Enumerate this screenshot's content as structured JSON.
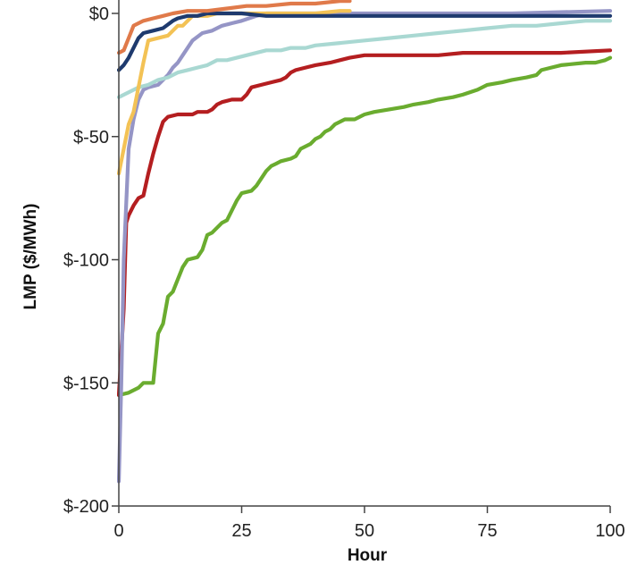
{
  "chart_data": {
    "type": "line",
    "title": "",
    "xlabel": "Hour",
    "ylabel": "LMP ($/MWh)",
    "xlim": [
      0,
      100
    ],
    "ylim": [
      -200,
      0
    ],
    "x_ticks": [
      {
        "value": 0,
        "label": "0"
      },
      {
        "value": 25,
        "label": "25"
      },
      {
        "value": 50,
        "label": "50"
      },
      {
        "value": 75,
        "label": "75"
      },
      {
        "value": 100,
        "label": "100"
      }
    ],
    "y_ticks": [
      {
        "value": 0,
        "label": "$0"
      },
      {
        "value": -50,
        "label": "$-50"
      },
      {
        "value": -100,
        "label": "$-100"
      },
      {
        "value": -150,
        "label": "$-150"
      },
      {
        "value": -200,
        "label": "$-200"
      }
    ],
    "grid": false,
    "legend": "none",
    "series": [
      {
        "color": "#6aac2f",
        "points": [
          [
            0,
            -155
          ],
          [
            2,
            -154
          ],
          [
            4,
            -152
          ],
          [
            5,
            -150
          ],
          [
            7,
            -150
          ],
          [
            8,
            -130
          ],
          [
            9,
            -126
          ],
          [
            10,
            -115
          ],
          [
            11,
            -113
          ],
          [
            12,
            -108
          ],
          [
            13,
            -103
          ],
          [
            14,
            -100
          ],
          [
            16,
            -99
          ],
          [
            17,
            -96
          ],
          [
            18,
            -90
          ],
          [
            19,
            -89
          ],
          [
            20,
            -87
          ],
          [
            21,
            -85
          ],
          [
            22,
            -84
          ],
          [
            23,
            -80
          ],
          [
            24,
            -76
          ],
          [
            25,
            -73
          ],
          [
            27,
            -72
          ],
          [
            28,
            -70
          ],
          [
            29,
            -67
          ],
          [
            30,
            -64
          ],
          [
            31,
            -62
          ],
          [
            32,
            -61
          ],
          [
            33,
            -60
          ],
          [
            35,
            -59
          ],
          [
            36,
            -58
          ],
          [
            37,
            -55
          ],
          [
            38,
            -54
          ],
          [
            39,
            -53
          ],
          [
            40,
            -51
          ],
          [
            41,
            -50
          ],
          [
            42,
            -48
          ],
          [
            43,
            -47
          ],
          [
            44,
            -45
          ],
          [
            45,
            -44
          ],
          [
            46,
            -43
          ],
          [
            48,
            -43
          ],
          [
            49,
            -42
          ],
          [
            50,
            -41
          ],
          [
            52,
            -40
          ],
          [
            55,
            -39
          ],
          [
            58,
            -38
          ],
          [
            60,
            -37
          ],
          [
            63,
            -36
          ],
          [
            65,
            -35
          ],
          [
            68,
            -34
          ],
          [
            70,
            -33
          ],
          [
            73,
            -31
          ],
          [
            75,
            -29
          ],
          [
            78,
            -28
          ],
          [
            80,
            -27
          ],
          [
            83,
            -26
          ],
          [
            85,
            -25
          ],
          [
            86,
            -23
          ],
          [
            88,
            -22
          ],
          [
            90,
            -21
          ],
          [
            95,
            -20
          ],
          [
            97,
            -20
          ],
          [
            99,
            -19
          ],
          [
            100,
            -18
          ]
        ]
      },
      {
        "color": "#b41e20",
        "points": [
          [
            0,
            -155
          ],
          [
            1,
            -120
          ],
          [
            1.5,
            -85
          ],
          [
            2,
            -82
          ],
          [
            3,
            -78
          ],
          [
            4,
            -75
          ],
          [
            5,
            -74
          ],
          [
            6,
            -65
          ],
          [
            7,
            -57
          ],
          [
            8,
            -50
          ],
          [
            9,
            -44
          ],
          [
            10,
            -42
          ],
          [
            12,
            -41
          ],
          [
            15,
            -41
          ],
          [
            16,
            -40
          ],
          [
            18,
            -40
          ],
          [
            19,
            -39
          ],
          [
            20,
            -37
          ],
          [
            21,
            -36
          ],
          [
            23,
            -35
          ],
          [
            25,
            -35
          ],
          [
            26,
            -33
          ],
          [
            27,
            -30
          ],
          [
            29,
            -29
          ],
          [
            31,
            -28
          ],
          [
            33,
            -27
          ],
          [
            34,
            -26
          ],
          [
            35,
            -24
          ],
          [
            36,
            -23
          ],
          [
            38,
            -22
          ],
          [
            40,
            -21
          ],
          [
            43,
            -20
          ],
          [
            45,
            -19
          ],
          [
            47,
            -18
          ],
          [
            50,
            -17
          ],
          [
            55,
            -17
          ],
          [
            60,
            -17
          ],
          [
            65,
            -17
          ],
          [
            70,
            -16
          ],
          [
            80,
            -16
          ],
          [
            90,
            -16
          ],
          [
            100,
            -15
          ]
        ]
      },
      {
        "color": "#9595c6",
        "points": [
          [
            0,
            -190
          ],
          [
            0.5,
            -150
          ],
          [
            1,
            -100
          ],
          [
            2,
            -55
          ],
          [
            3,
            -43
          ],
          [
            4,
            -35
          ],
          [
            5,
            -31
          ],
          [
            6,
            -30
          ],
          [
            8,
            -29
          ],
          [
            10,
            -25
          ],
          [
            11,
            -22
          ],
          [
            12,
            -20
          ],
          [
            13,
            -17
          ],
          [
            14,
            -14
          ],
          [
            15,
            -11
          ],
          [
            17,
            -8
          ],
          [
            19,
            -7
          ],
          [
            21,
            -5
          ],
          [
            23,
            -4
          ],
          [
            25,
            -3
          ],
          [
            28,
            -1
          ],
          [
            30,
            0
          ],
          [
            40,
            0
          ],
          [
            60,
            0
          ],
          [
            80,
            0
          ],
          [
            100,
            1
          ]
        ]
      },
      {
        "color": "#a9d8d2",
        "points": [
          [
            0,
            -34
          ],
          [
            2,
            -32
          ],
          [
            4,
            -30
          ],
          [
            6,
            -29
          ],
          [
            8,
            -27
          ],
          [
            10,
            -26
          ],
          [
            12,
            -24
          ],
          [
            14,
            -23
          ],
          [
            16,
            -22
          ],
          [
            18,
            -21
          ],
          [
            20,
            -19
          ],
          [
            22,
            -19
          ],
          [
            24,
            -18
          ],
          [
            26,
            -17
          ],
          [
            28,
            -16
          ],
          [
            30,
            -15
          ],
          [
            33,
            -15
          ],
          [
            35,
            -14
          ],
          [
            38,
            -14
          ],
          [
            40,
            -13
          ],
          [
            45,
            -12
          ],
          [
            50,
            -11
          ],
          [
            55,
            -10
          ],
          [
            60,
            -9
          ],
          [
            65,
            -8
          ],
          [
            70,
            -7
          ],
          [
            75,
            -6
          ],
          [
            80,
            -5
          ],
          [
            85,
            -5
          ],
          [
            90,
            -4
          ],
          [
            95,
            -3
          ],
          [
            100,
            -3
          ]
        ]
      },
      {
        "color": "#f3c255",
        "points": [
          [
            0,
            -65
          ],
          [
            1,
            -55
          ],
          [
            2,
            -45
          ],
          [
            3,
            -40
          ],
          [
            4,
            -30
          ],
          [
            5,
            -20
          ],
          [
            6,
            -11
          ],
          [
            8,
            -10
          ],
          [
            10,
            -9
          ],
          [
            11,
            -7
          ],
          [
            12,
            -5
          ],
          [
            13,
            -5
          ],
          [
            14,
            -3
          ],
          [
            15,
            -1
          ],
          [
            17,
            -1
          ],
          [
            18,
            -1
          ],
          [
            20,
            0
          ],
          [
            25,
            0
          ],
          [
            30,
            0
          ],
          [
            35,
            0
          ],
          [
            40,
            0
          ],
          [
            45,
            1
          ],
          [
            47,
            1
          ]
        ]
      },
      {
        "color": "#1e3a6e",
        "points": [
          [
            0,
            -23
          ],
          [
            1,
            -21
          ],
          [
            2,
            -18
          ],
          [
            3,
            -14
          ],
          [
            4,
            -10
          ],
          [
            5,
            -8
          ],
          [
            7,
            -7
          ],
          [
            9,
            -6
          ],
          [
            11,
            -3
          ],
          [
            12,
            -2
          ],
          [
            14,
            -1
          ],
          [
            16,
            -1
          ],
          [
            18,
            0
          ],
          [
            25,
            0
          ],
          [
            30,
            -1
          ],
          [
            40,
            -1
          ],
          [
            50,
            -1
          ],
          [
            60,
            -1
          ],
          [
            70,
            -1
          ],
          [
            80,
            -1
          ],
          [
            90,
            -1
          ],
          [
            100,
            -1
          ]
        ]
      },
      {
        "color": "#e07a4a",
        "points": [
          [
            0,
            -16
          ],
          [
            1,
            -15
          ],
          [
            2,
            -10
          ],
          [
            3,
            -5
          ],
          [
            4,
            -4
          ],
          [
            5,
            -3
          ],
          [
            7,
            -2
          ],
          [
            9,
            -1
          ],
          [
            11,
            0
          ],
          [
            14,
            1
          ],
          [
            18,
            1
          ],
          [
            22,
            2
          ],
          [
            26,
            3
          ],
          [
            30,
            3
          ],
          [
            35,
            4
          ],
          [
            40,
            4
          ],
          [
            45,
            5
          ],
          [
            47,
            5
          ]
        ]
      }
    ]
  }
}
